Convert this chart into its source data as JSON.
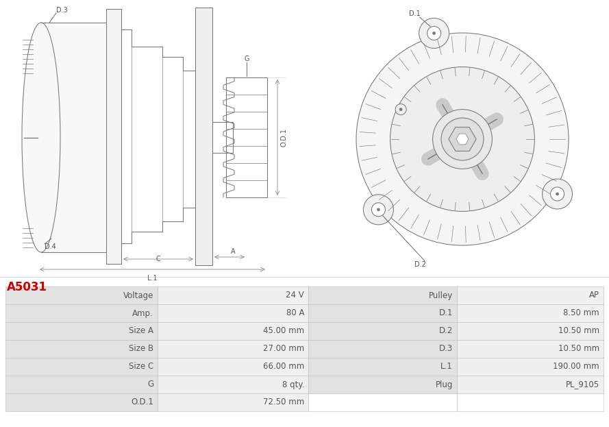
{
  "title": "A5031",
  "title_color": "#cc0000",
  "title_fontsize": 12,
  "table_rows": [
    [
      "Voltage",
      "24 V",
      "Pulley",
      "AP"
    ],
    [
      "Amp.",
      "80 A",
      "D.1",
      "8.50 mm"
    ],
    [
      "Size A",
      "45.00 mm",
      "D.2",
      "10.50 mm"
    ],
    [
      "Size B",
      "27.00 mm",
      "D.3",
      "10.50 mm"
    ],
    [
      "Size C",
      "66.00 mm",
      "L.1",
      "190.00 mm"
    ],
    [
      "G",
      "8 qty.",
      "Plug",
      "PL_9105"
    ],
    [
      "O.D.1",
      "72.50 mm",
      "",
      ""
    ]
  ],
  "text_color": "#555555",
  "font_size": 8.5,
  "fig_width": 8.89,
  "fig_height": 6.23,
  "background_color": "#ffffff",
  "line_color": "#888888",
  "label_color": "#555555",
  "label_fs": 7.0
}
